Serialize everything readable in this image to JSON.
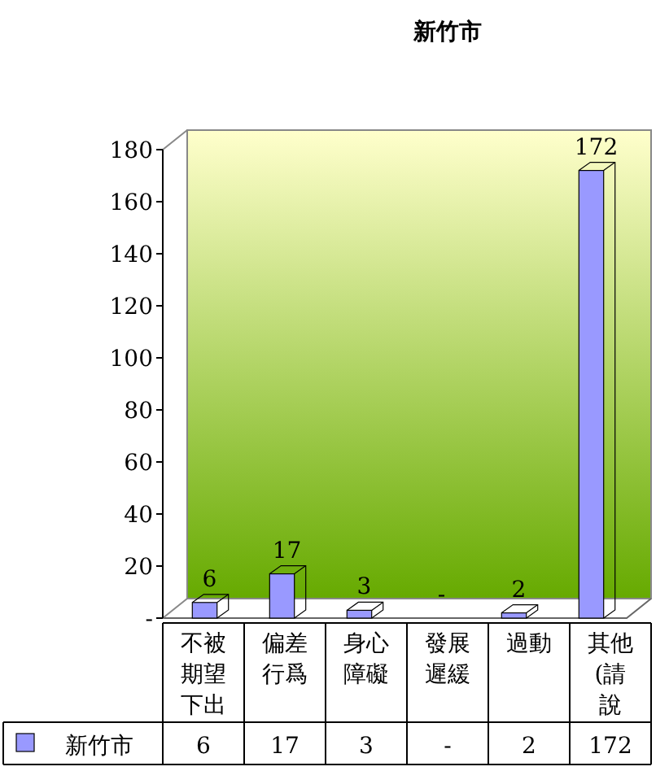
{
  "chart_data": {
    "type": "bar",
    "title": "新竹市",
    "categories": [
      "不被期望下出",
      "偏差行爲",
      "身心障礙",
      "發展遲緩",
      "過動",
      "其他(請說"
    ],
    "series": [
      {
        "name": "新竹市",
        "color": "#9999ff",
        "values": [
          6,
          17,
          3,
          null,
          2,
          172
        ],
        "value_labels": [
          "6",
          "17",
          "3",
          "-",
          "2",
          "172"
        ]
      }
    ],
    "ylim": [
      0,
      180
    ],
    "yticks": [
      {
        "value": 0,
        "label": "-"
      },
      20,
      40,
      60,
      80,
      100,
      120,
      140,
      160,
      180
    ],
    "legend": "bottom"
  }
}
